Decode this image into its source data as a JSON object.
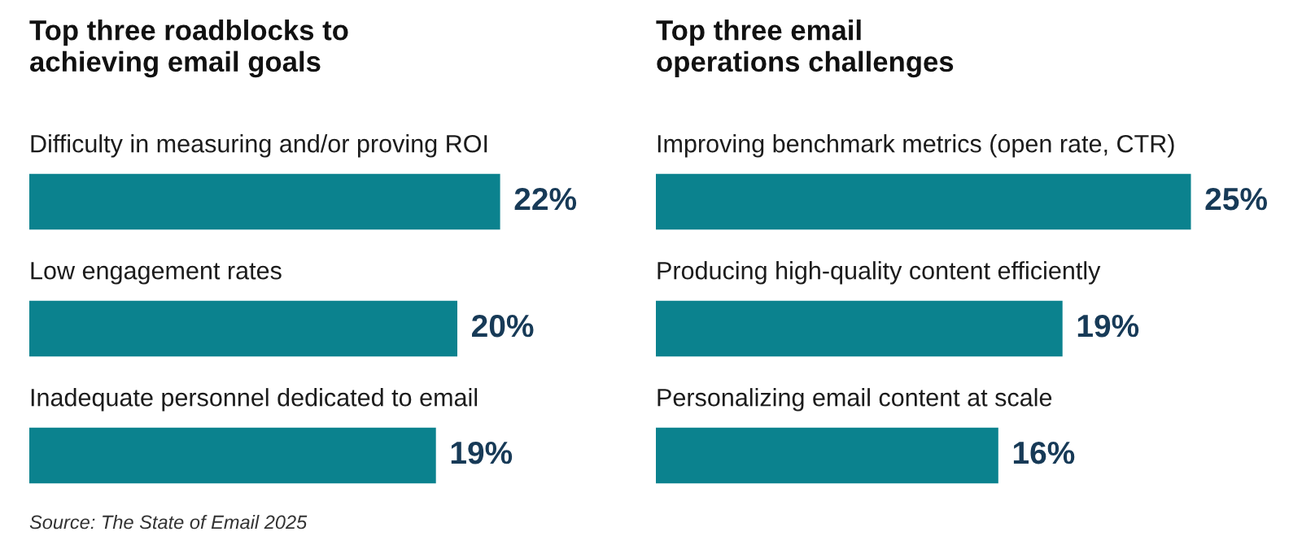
{
  "chart_data": [
    {
      "type": "bar",
      "orientation": "horizontal",
      "title": "Top three roadblocks to\nachieving email goals",
      "categories": [
        "Difficulty in measuring and/or proving ROI",
        "Low engagement rates",
        "Inadequate personnel dedicated to email"
      ],
      "values": [
        22,
        20,
        19
      ],
      "color": "#0b828e",
      "value_labels": [
        "22%",
        "20%",
        "19%"
      ],
      "annotations": [
        "Source: The State of Email 2025"
      ],
      "tick_labels": false
    },
    {
      "type": "bar",
      "orientation": "horizontal",
      "title": "Top three email\noperations challenges",
      "categories": [
        "Improving benchmark metrics (open rate, CTR)",
        "Producing high-quality content efficiently",
        "Personalizing email content at scale"
      ],
      "values": [
        25,
        19,
        16
      ],
      "color": "#0b828e",
      "value_labels": [
        "25%",
        "19%",
        "16%"
      ],
      "tick_labels": false
    }
  ]
}
